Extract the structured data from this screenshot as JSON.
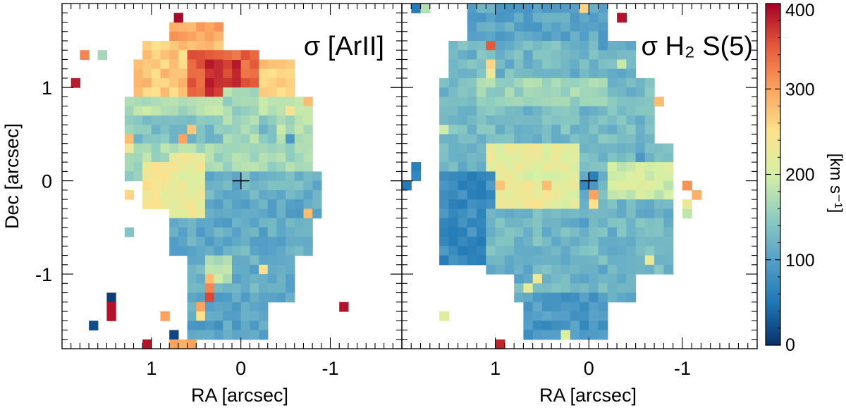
{
  "chart_data": [
    {
      "type": "heatmap",
      "title": "σ [ArII]",
      "xlabel": "RA [arcsec]",
      "ylabel": "Dec [arcsec]",
      "xlim": [
        2.0,
        -1.8
      ],
      "ylim": [
        -1.8,
        1.9
      ],
      "x_ticks": [
        "1",
        "0",
        "-1"
      ],
      "y_ticks": [
        "1",
        "0",
        "-1"
      ],
      "center_marker": [
        0,
        0
      ],
      "pixel_size_arcsec": 0.1,
      "map_blocks_sigma_kms": [
        {
          "ra": [
            0.75,
            0.25
          ],
          "dec": [
            1.65,
            1.45
          ],
          "sigma": 300
        },
        {
          "ra": [
            1.05,
            0.25
          ],
          "dec": [
            1.45,
            1.25
          ],
          "sigma": 270
        },
        {
          "ra": [
            1.15,
            -0.55
          ],
          "dec": [
            1.25,
            0.85
          ],
          "sigma": 270
        },
        {
          "ra": [
            0.55,
            -0.15
          ],
          "dec": [
            1.35,
            0.75
          ],
          "sigma": 340
        },
        {
          "ra": [
            0.35,
            0.05
          ],
          "dec": [
            1.25,
            0.95
          ],
          "sigma": 375
        },
        {
          "ra": [
            1.25,
            -0.75
          ],
          "dec": [
            0.85,
            0.35
          ],
          "sigma": 175
        },
        {
          "ra": [
            1.15,
            -0.35
          ],
          "dec": [
            0.65,
            0.25
          ],
          "sigma": 135
        },
        {
          "ra": [
            1.25,
            -0.75
          ],
          "dec": [
            0.35,
            0.05
          ],
          "sigma": 165
        },
        {
          "ra": [
            1.05,
            0.45
          ],
          "dec": [
            0.15,
            -0.25
          ],
          "sigma": 235
        },
        {
          "ra": [
            0.75,
            -0.85
          ],
          "dec": [
            0.05,
            -0.35
          ],
          "sigma": 120
        },
        {
          "ra": [
            0.75,
            -0.75
          ],
          "dec": [
            -0.25,
            -0.75
          ],
          "sigma": 110
        },
        {
          "ra": [
            0.55,
            -0.55
          ],
          "dec": [
            -0.75,
            -1.25
          ],
          "sigma": 115
        },
        {
          "ra": [
            0.55,
            -0.25
          ],
          "dec": [
            -1.25,
            -1.65
          ],
          "sigma": 105
        },
        {
          "ra": [
            0.15,
            -0.15
          ],
          "dec": [
            0.95,
            0.35
          ],
          "sigma": 165
        },
        {
          "ra": [
            0.75,
            0.45
          ],
          "dec": [
            0.25,
            -0.35
          ],
          "sigma": 225
        },
        {
          "ra": [
            0.35,
            0.15
          ],
          "dec": [
            -0.85,
            -1.05
          ],
          "sigma": 180
        }
      ],
      "isolated_pixels": [
        {
          "ra": 0.7,
          "dec": 1.75,
          "sigma": 395
        },
        {
          "ra": 1.75,
          "dec": 1.35,
          "sigma": 320
        },
        {
          "ra": 1.55,
          "dec": 1.35,
          "sigma": 165
        },
        {
          "ra": 1.85,
          "dec": 1.05,
          "sigma": 385
        },
        {
          "ra": 1.25,
          "dec": 0.65,
          "sigma": 150
        },
        {
          "ra": 1.25,
          "dec": 0.45,
          "sigma": 280
        },
        {
          "ra": 1.25,
          "dec": 0.35,
          "sigma": 230
        },
        {
          "ra": 1.25,
          "dec": -0.15,
          "sigma": 260
        },
        {
          "ra": 1.25,
          "dec": -0.55,
          "sigma": 140
        },
        {
          "ra": 0.35,
          "dec": -1.05,
          "sigma": 280
        },
        {
          "ra": 0.35,
          "dec": -1.15,
          "sigma": 320
        },
        {
          "ra": 0.35,
          "dec": -1.25,
          "sigma": 360
        },
        {
          "ra": 0.45,
          "dec": -1.35,
          "sigma": 300
        },
        {
          "ra": 0.45,
          "dec": -1.45,
          "sigma": 250
        },
        {
          "ra": 0.85,
          "dec": -1.45,
          "sigma": 300
        },
        {
          "ra": 1.45,
          "dec": -1.25,
          "sigma": 10
        },
        {
          "ra": 1.45,
          "dec": -1.35,
          "sigma": 390
        },
        {
          "ra": 1.45,
          "dec": -1.45,
          "sigma": 390
        },
        {
          "ra": 1.65,
          "dec": -1.55,
          "sigma": 20
        },
        {
          "ra": 0.75,
          "dec": -1.65,
          "sigma": 15
        },
        {
          "ra": 0.75,
          "dec": -1.75,
          "sigma": 300
        },
        {
          "ra": 0.65,
          "dec": -1.75,
          "sigma": 290
        },
        {
          "ra": 0.55,
          "dec": -1.75,
          "sigma": 300
        },
        {
          "ra": 1.05,
          "dec": -1.75,
          "sigma": 390
        },
        {
          "ra": 0.25,
          "dec": -1.55,
          "sigma": 80
        },
        {
          "ra": -1.15,
          "dec": -1.35,
          "sigma": 390
        },
        {
          "ra": -0.75,
          "dec": -0.35,
          "sigma": 280
        },
        {
          "ra": -0.55,
          "dec": -1.15,
          "sigma": 100
        },
        {
          "ra": -0.75,
          "dec": 0.85,
          "sigma": 280
        },
        {
          "ra": -0.55,
          "dec": 0.75,
          "sigma": 240
        },
        {
          "ra": -0.55,
          "dec": 0.45,
          "sigma": 90
        },
        {
          "ra": -0.25,
          "dec": -0.95,
          "sigma": 250
        },
        {
          "ra": 0.55,
          "dec": 0.55,
          "sigma": 270
        },
        {
          "ra": 0.65,
          "dec": 0.45,
          "sigma": 300
        }
      ]
    },
    {
      "type": "heatmap",
      "title": "σ H₂ S(5)",
      "xlabel": "RA [arcsec]",
      "ylabel": "",
      "xlim": [
        2.0,
        -1.8
      ],
      "ylim": [
        -1.8,
        1.9
      ],
      "x_ticks": [
        "1",
        "0",
        "-1"
      ],
      "center_marker": [
        0,
        0
      ],
      "pixel_size_arcsec": 0.1,
      "map_blocks_sigma_kms": [
        {
          "ra": [
            1.25,
            -0.15
          ],
          "dec": [
            1.85,
            1.45
          ],
          "sigma": 105
        },
        {
          "ra": [
            1.45,
            -0.45
          ],
          "dec": [
            1.45,
            1.05
          ],
          "sigma": 125
        },
        {
          "ra": [
            1.55,
            -0.65
          ],
          "dec": [
            1.05,
            0.35
          ],
          "sigma": 130
        },
        {
          "ra": [
            1.15,
            -0.15
          ],
          "dec": [
            1.05,
            0.85
          ],
          "sigma": 160
        },
        {
          "ra": [
            1.55,
            -0.85
          ],
          "dec": [
            0.35,
            -0.35
          ],
          "sigma": 125
        },
        {
          "ra": [
            1.05,
            0.15
          ],
          "dec": [
            0.35,
            -0.35
          ],
          "sigma": 215
        },
        {
          "ra": [
            0.85,
            0.45
          ],
          "dec": [
            -0.05,
            -0.25
          ],
          "sigma": 235
        },
        {
          "ra": [
            -0.25,
            -0.85
          ],
          "dec": [
            0.15,
            -0.15
          ],
          "sigma": 195
        },
        {
          "ra": [
            1.55,
            1.05
          ],
          "dec": [
            0.05,
            -0.85
          ],
          "sigma": 75
        },
        {
          "ra": [
            1.05,
            -0.85
          ],
          "dec": [
            -0.35,
            -0.95
          ],
          "sigma": 125
        },
        {
          "ra": [
            0.75,
            -0.45
          ],
          "dec": [
            -0.95,
            -1.25
          ],
          "sigma": 120
        },
        {
          "ra": [
            0.65,
            -0.15
          ],
          "dec": [
            -1.25,
            -1.65
          ],
          "sigma": 90
        }
      ],
      "isolated_pixels": [
        {
          "ra": 1.85,
          "dec": 1.85,
          "sigma": 55
        },
        {
          "ra": 1.75,
          "dec": 1.85,
          "sigma": 175
        },
        {
          "ra": 1.05,
          "dec": 1.45,
          "sigma": 350
        },
        {
          "ra": 0.05,
          "dec": 1.85,
          "sigma": 260
        },
        {
          "ra": -0.35,
          "dec": 1.75,
          "sigma": 390
        },
        {
          "ra": -0.15,
          "dec": 1.45,
          "sigma": 90
        },
        {
          "ra": -0.35,
          "dec": 1.25,
          "sigma": 190
        },
        {
          "ra": 1.05,
          "dec": 1.25,
          "sigma": 260
        },
        {
          "ra": 1.05,
          "dec": 1.15,
          "sigma": 230
        },
        {
          "ra": 1.55,
          "dec": 0.55,
          "sigma": 195
        },
        {
          "ra": 1.85,
          "dec": 0.15,
          "sigma": 60
        },
        {
          "ra": 1.85,
          "dec": 0.05,
          "sigma": 70
        },
        {
          "ra": 1.95,
          "dec": -0.05,
          "sigma": 55
        },
        {
          "ra": 0.95,
          "dec": -0.05,
          "sigma": 275
        },
        {
          "ra": 0.45,
          "dec": -0.05,
          "sigma": 280
        },
        {
          "ra": 0.05,
          "dec": -0.05,
          "sigma": 70
        },
        {
          "ra": -0.05,
          "dec": -0.05,
          "sigma": 90
        },
        {
          "ra": -0.05,
          "dec": 0.05,
          "sigma": 60
        },
        {
          "ra": -0.05,
          "dec": -0.15,
          "sigma": 300
        },
        {
          "ra": -0.05,
          "dec": -0.25,
          "sigma": 250
        },
        {
          "ra": 0.05,
          "dec": -0.45,
          "sigma": 95
        },
        {
          "ra": -0.75,
          "dec": 0.85,
          "sigma": 280
        },
        {
          "ra": -0.55,
          "dec": 0.25,
          "sigma": 90
        },
        {
          "ra": -1.05,
          "dec": -0.05,
          "sigma": 310
        },
        {
          "ra": -1.15,
          "dec": -0.15,
          "sigma": 290
        },
        {
          "ra": -1.05,
          "dec": -0.25,
          "sigma": 225
        },
        {
          "ra": -1.05,
          "dec": -0.35,
          "sigma": 185
        },
        {
          "ra": -0.65,
          "dec": -0.85,
          "sigma": 225
        },
        {
          "ra": 0.55,
          "dec": -1.05,
          "sigma": 230
        },
        {
          "ra": 0.65,
          "dec": -1.15,
          "sigma": 220
        },
        {
          "ra": 1.55,
          "dec": -1.45,
          "sigma": 215
        },
        {
          "ra": 0.25,
          "dec": -1.65,
          "sigma": 210
        },
        {
          "ra": 0.95,
          "dec": -1.75,
          "sigma": 380
        },
        {
          "ra": 0.85,
          "dec": 0.45,
          "sigma": 140
        }
      ]
    }
  ],
  "colorbar": {
    "label": "[km s⁻¹]",
    "min": 0,
    "max": 400,
    "ticks": [
      "0",
      "100",
      "200",
      "300",
      "400"
    ],
    "colormap": [
      "#08306b",
      "#1f78b4",
      "#56a0c8",
      "#8fcdc1",
      "#d6f0a4",
      "#fde28e",
      "#fba35f",
      "#e45a3a",
      "#a50026"
    ]
  }
}
